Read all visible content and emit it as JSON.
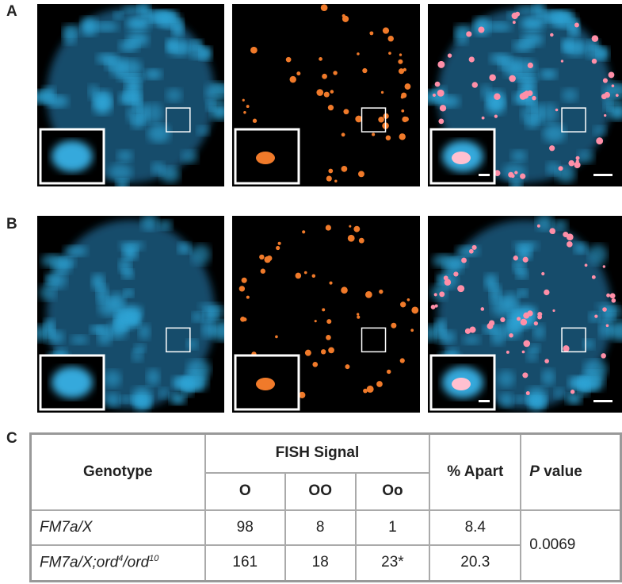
{
  "panels": {
    "a": "A",
    "b": "B",
    "c": "C"
  },
  "table": {
    "header": {
      "genotype": "Genotype",
      "fish_signal": "FISH Signal",
      "percent_apart": "% Apart",
      "p_value": {
        "italic": "P",
        "rest": " value"
      },
      "signals": [
        "O",
        "OO",
        "Oo"
      ]
    },
    "rows": [
      {
        "genotype": [
          {
            "base": "FM7a/X"
          }
        ],
        "cells": [
          98,
          8,
          1,
          8.4
        ]
      },
      {
        "genotype": [
          {
            "base": "FM7a/X;ord",
            "sup": "4"
          },
          {
            "base": "/ord",
            "sup": "10"
          }
        ],
        "cells": [
          161,
          18,
          "23*",
          20.3
        ]
      }
    ],
    "p_value": 0.0069
  }
}
